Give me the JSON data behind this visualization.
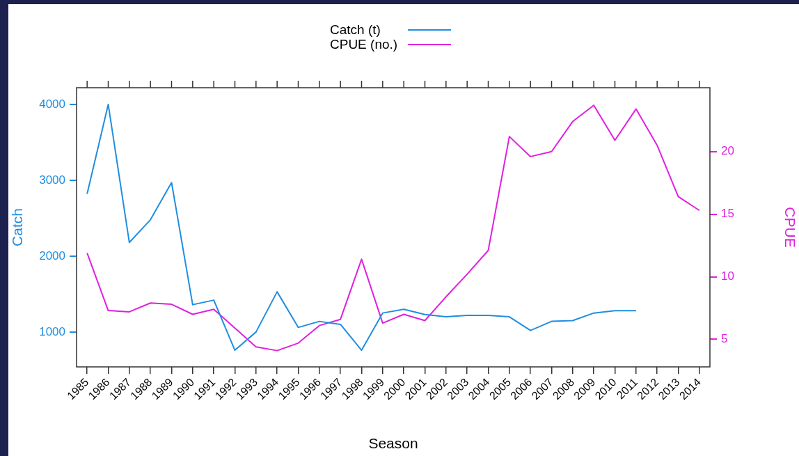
{
  "chart_data": {
    "type": "line",
    "xlabel": "Season",
    "ylabel": "Catch",
    "y2label": "CPUE",
    "legend": "top",
    "grid": false,
    "marker": "none",
    "line_style": "solid",
    "categories": [
      "1985",
      "1986",
      "1987",
      "1988",
      "1989",
      "1990",
      "1991",
      "1992",
      "1993",
      "1994",
      "1995",
      "1996",
      "1997",
      "1998",
      "1999",
      "2000",
      "2001",
      "2002",
      "2003",
      "2004",
      "2005",
      "2006",
      "2007",
      "2008",
      "2009",
      "2010",
      "2011",
      "2012",
      "2013",
      "2014"
    ],
    "ylim": [
      540,
      4220
    ],
    "yticks": [
      1000,
      2000,
      3000,
      4000
    ],
    "y2lim": [
      2.8,
      25.1
    ],
    "y2ticks": [
      5,
      10,
      15,
      20
    ],
    "series": [
      {
        "name": "Catch (t)",
        "color": "#1f8ee0",
        "values": [
          2820,
          4000,
          2180,
          2480,
          2970,
          1360,
          1420,
          760,
          1000,
          1530,
          1060,
          1140,
          1100,
          760,
          1250,
          1300,
          1230,
          1200,
          1220,
          1220,
          1200,
          1020,
          1140,
          1150,
          1250,
          1280,
          1280,
          null,
          null,
          null
        ]
      },
      {
        "name": "CPUE (no.)",
        "color": "#e020e0",
        "axis": "y2",
        "values": [
          11.9,
          7.3,
          7.2,
          7.9,
          7.8,
          7.0,
          7.4,
          5.9,
          4.4,
          4.1,
          4.7,
          6.1,
          6.6,
          11.4,
          6.3,
          7.0,
          6.5,
          8.4,
          10.2,
          12.1,
          21.2,
          19.6,
          20.0,
          22.4,
          23.7,
          20.9,
          23.4,
          20.5,
          16.4,
          15.3
        ]
      }
    ]
  }
}
